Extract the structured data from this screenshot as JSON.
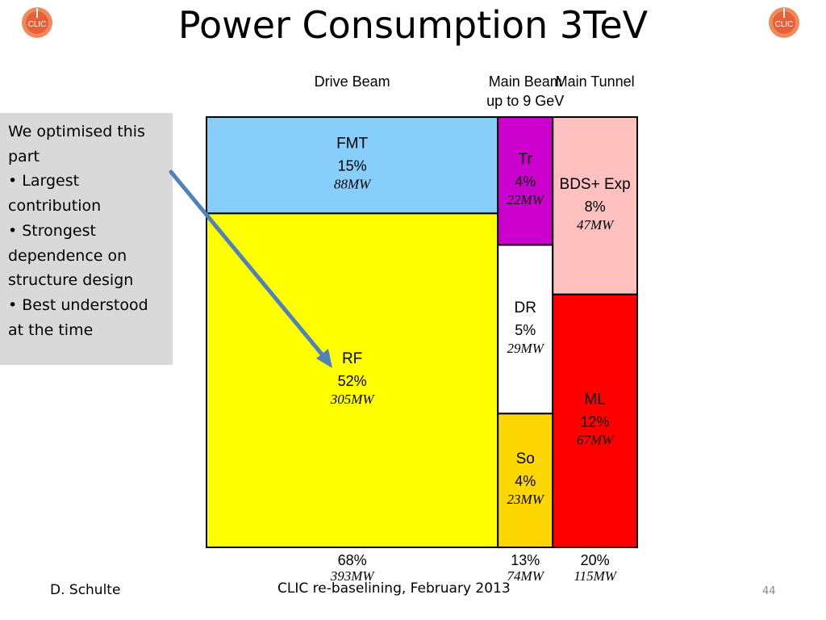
{
  "slide": {
    "title": "Power Consumption 3TeV",
    "notes": [
      "We optimised this",
      "part",
      "• Largest",
      "contribution",
      "• Strongest",
      "dependence on",
      "structure design",
      "• Best understood",
      "at the time"
    ],
    "footer_author": "D. Schulte",
    "footer_event": "CLIC re-baselining, February 2013",
    "page_number": "44",
    "logo_text": "CLIC",
    "colors": {
      "arrow": "#4f81bd",
      "note_box": "#d9d9d9"
    }
  },
  "chart_data": {
    "type": "heatmap",
    "title": "Power Consumption 3TeV",
    "groups": [
      {
        "header": [
          "Drive Beam"
        ],
        "total_percent": "68%",
        "total_power": "393MW",
        "cells": [
          {
            "name": "FMT",
            "percent": "15%",
            "power": "88MW",
            "percent_value": 15,
            "power_value_mw": 88,
            "color": "#87cefa"
          },
          {
            "name": "RF",
            "percent": "52%",
            "power": "305MW",
            "percent_value": 52,
            "power_value_mw": 305,
            "color": "#ffff00"
          }
        ]
      },
      {
        "header": [
          "Main Beam",
          "up to 9 GeV"
        ],
        "total_percent": "13%",
        "total_power": "74MW",
        "cells": [
          {
            "name": "Tr",
            "percent": "4%",
            "power": "22MW",
            "percent_value": 4,
            "power_value_mw": 22,
            "color": "#cc00cc"
          },
          {
            "name": "DR",
            "percent": "5%",
            "power": "29MW",
            "percent_value": 5,
            "power_value_mw": 29,
            "color": "#ffffff"
          },
          {
            "name": "So",
            "percent": "4%",
            "power": "23MW",
            "percent_value": 4,
            "power_value_mw": 23,
            "color": "#ffd700"
          }
        ]
      },
      {
        "header": [
          "Main Tunnel"
        ],
        "total_percent": "20%",
        "total_power": "115MW",
        "cells": [
          {
            "name": "BDS+ Exp",
            "percent": "8%",
            "power": "47MW",
            "percent_value": 8,
            "power_value_mw": 47,
            "color": "#ffc0c0"
          },
          {
            "name": "ML",
            "percent": "12%",
            "power": "67MW",
            "percent_value": 12,
            "power_value_mw": 67,
            "color": "#ff0000"
          }
        ]
      }
    ]
  }
}
